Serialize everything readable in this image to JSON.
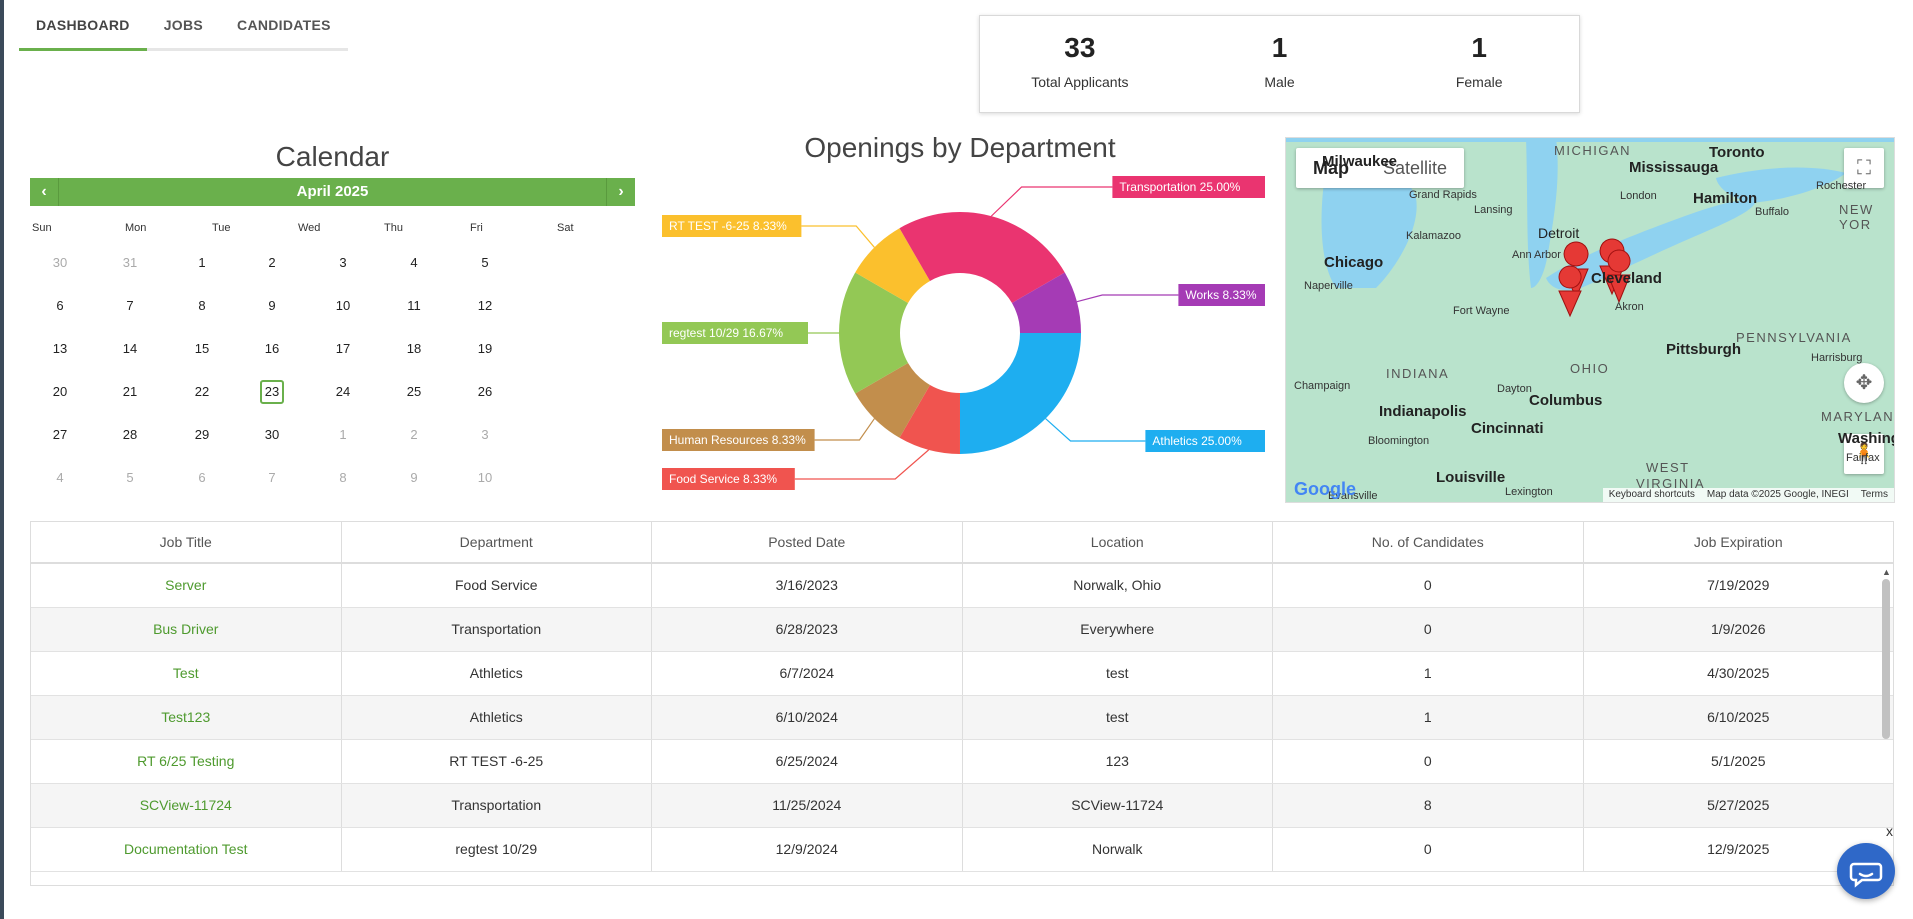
{
  "tabs": [
    {
      "label": "DASHBOARD",
      "active": true
    },
    {
      "label": "JOBS",
      "active": false
    },
    {
      "label": "CANDIDATES",
      "active": false
    }
  ],
  "stats": [
    {
      "value": "33",
      "label": "Total Applicants"
    },
    {
      "value": "1",
      "label": "Male"
    },
    {
      "value": "1",
      "label": "Female"
    }
  ],
  "calendar": {
    "title": "Calendar",
    "month": "April 2025",
    "weekdays": [
      "Sun",
      "Mon",
      "Tue",
      "Wed",
      "Thu",
      "Fri",
      "Sat"
    ],
    "weeks": [
      [
        [
          "30",
          true
        ],
        [
          "31",
          true
        ],
        [
          "1",
          false
        ],
        [
          "2",
          false
        ],
        [
          "3",
          false
        ],
        [
          "4",
          false
        ],
        [
          "5",
          false
        ]
      ],
      [
        [
          "6",
          false
        ],
        [
          "7",
          false
        ],
        [
          "8",
          false
        ],
        [
          "9",
          false
        ],
        [
          "10",
          false
        ],
        [
          "11",
          false
        ],
        [
          "12",
          false
        ]
      ],
      [
        [
          "13",
          false
        ],
        [
          "14",
          false
        ],
        [
          "15",
          false
        ],
        [
          "16",
          false
        ],
        [
          "17",
          false
        ],
        [
          "18",
          false
        ],
        [
          "19",
          false
        ]
      ],
      [
        [
          "20",
          false
        ],
        [
          "21",
          false
        ],
        [
          "22",
          false
        ],
        [
          "23",
          false
        ],
        [
          "24",
          false
        ],
        [
          "25",
          false
        ],
        [
          "26",
          false
        ]
      ],
      [
        [
          "27",
          false
        ],
        [
          "28",
          false
        ],
        [
          "29",
          false
        ],
        [
          "30",
          false
        ],
        [
          "1",
          true
        ],
        [
          "2",
          true
        ],
        [
          "3",
          true
        ]
      ],
      [
        [
          "4",
          true
        ],
        [
          "5",
          true
        ],
        [
          "6",
          true
        ],
        [
          "7",
          true
        ],
        [
          "8",
          true
        ],
        [
          "9",
          true
        ],
        [
          "10",
          true
        ]
      ]
    ],
    "today": "23"
  },
  "chart_data": {
    "type": "pie",
    "title": "Openings by Department",
    "slices": [
      {
        "name": "Athletics",
        "value": 25.0,
        "label": "Athletics 25.00%",
        "color": "#1eaef0"
      },
      {
        "name": "Food Service",
        "value": 8.33,
        "label": "Food Service 8.33%",
        "color": "#f0544f"
      },
      {
        "name": "Human Resources",
        "value": 8.33,
        "label": "Human Resources 8.33%",
        "color": "#c28e4c"
      },
      {
        "name": "regtest 10/29",
        "value": 16.67,
        "label": "regtest 10/29 16.67%",
        "color": "#93c855"
      },
      {
        "name": "RT TEST -6-25",
        "value": 8.33,
        "label": "RT TEST -6-25 8.33%",
        "color": "#fbc02d"
      },
      {
        "name": "Transportation",
        "value": 25.0,
        "label": "Transportation 25.00%",
        "color": "#ea3470"
      },
      {
        "name": "Works",
        "value": 8.33,
        "label": "Works 8.33%",
        "color": "#a53bb5"
      }
    ]
  },
  "map": {
    "btn_map": "Map",
    "btn_satellite": "Satellite",
    "cities": [
      "Milwaukee",
      "Grand Rapids",
      "Lansing",
      "Kalamazoo",
      "Detroit",
      "Ann Arbor",
      "Chicago",
      "Naperville",
      "Fort Wayne",
      "Cleveland",
      "Akron",
      "Mississauga",
      "Toronto",
      "Hamilton",
      "London",
      "Buffalo",
      "Rochester",
      "Pittsburgh",
      "Champaign",
      "Indianapolis",
      "Dayton",
      "Columbus",
      "Bloomington",
      "Cincinnati",
      "Louisville",
      "Lexington",
      "Evansville",
      "Harrisburg",
      "Washington",
      "Fairfax"
    ],
    "states": [
      "MICHIGAN",
      "INDIANA",
      "OHIO",
      "PENNSYLVANIA",
      "MARYLAND",
      "WEST",
      "VIRGINIA",
      "NEW YOR"
    ],
    "footer": [
      "Keyboard shortcuts",
      "Map data ©2025 Google, INEGI",
      "Terms"
    ],
    "google": "Google"
  },
  "table": {
    "headers": [
      "Job Title",
      "Department",
      "Posted Date",
      "Location",
      "No. of Candidates",
      "Job Expiration"
    ],
    "rows": [
      [
        "Server",
        "Food Service",
        "3/16/2023",
        "Norwalk, Ohio",
        "0",
        "7/19/2029"
      ],
      [
        "Bus Driver",
        "Transportation",
        "6/28/2023",
        "Everywhere",
        "0",
        "1/9/2026"
      ],
      [
        "Test",
        "Athletics",
        "6/7/2024",
        "test",
        "1",
        "4/30/2025"
      ],
      [
        "Test123",
        "Athletics",
        "6/10/2024",
        "test",
        "1",
        "6/10/2025"
      ],
      [
        "RT 6/25 Testing",
        "RT TEST -6-25",
        "6/25/2024",
        "123",
        "0",
        "5/1/2025"
      ],
      [
        "SCView-11724",
        "Transportation",
        "11/25/2024",
        "SCView-11724",
        "8",
        "5/27/2025"
      ],
      [
        "Documentation Test",
        "regtest 10/29",
        "12/9/2024",
        "Norwalk",
        "0",
        "12/9/2025"
      ]
    ]
  },
  "chat_close": "x"
}
